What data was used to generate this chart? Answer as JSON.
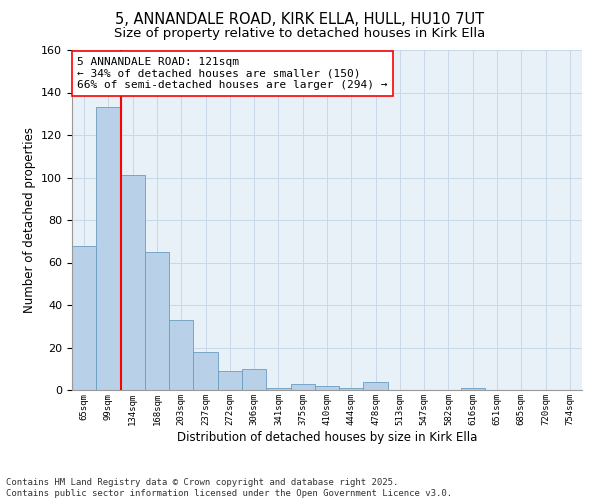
{
  "title1": "5, ANNANDALE ROAD, KIRK ELLA, HULL, HU10 7UT",
  "title2": "Size of property relative to detached houses in Kirk Ella",
  "xlabel": "Distribution of detached houses by size in Kirk Ella",
  "ylabel": "Number of detached properties",
  "categories": [
    "65sqm",
    "99sqm",
    "134sqm",
    "168sqm",
    "203sqm",
    "237sqm",
    "272sqm",
    "306sqm",
    "341sqm",
    "375sqm",
    "410sqm",
    "444sqm",
    "478sqm",
    "513sqm",
    "547sqm",
    "582sqm",
    "616sqm",
    "651sqm",
    "685sqm",
    "720sqm",
    "754sqm"
  ],
  "values": [
    68,
    133,
    101,
    65,
    33,
    18,
    9,
    10,
    1,
    3,
    2,
    1,
    4,
    0,
    0,
    0,
    1,
    0,
    0,
    0,
    0
  ],
  "bar_color": "#b8d0e8",
  "bar_edge_color": "#6a9cc0",
  "property_line_x": 1.5,
  "annotation_text": "5 ANNANDALE ROAD: 121sqm\n← 34% of detached houses are smaller (150)\n66% of semi-detached houses are larger (294) →",
  "ylim": [
    0,
    160
  ],
  "yticks": [
    0,
    20,
    40,
    60,
    80,
    100,
    120,
    140,
    160
  ],
  "grid_color": "#c8d8e8",
  "background_color": "#e8f0f8",
  "footer": "Contains HM Land Registry data © Crown copyright and database right 2025.\nContains public sector information licensed under the Open Government Licence v3.0.",
  "title1_fontsize": 10.5,
  "title2_fontsize": 9.5,
  "annotation_fontsize": 8,
  "footer_fontsize": 6.5,
  "ylabel_fontsize": 8.5,
  "xlabel_fontsize": 8.5,
  "xtick_fontsize": 6.5,
  "ytick_fontsize": 8
}
